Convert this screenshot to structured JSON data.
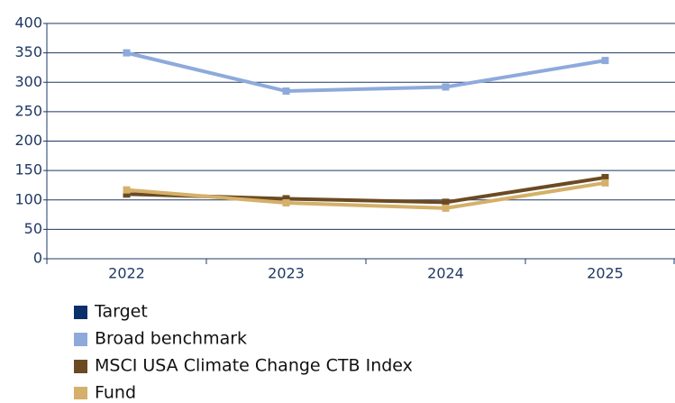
{
  "chart_data": {
    "type": "line",
    "categories": [
      "2022",
      "2023",
      "2024",
      "2025"
    ],
    "series": [
      {
        "name": "Target",
        "color": "#0b2f6b",
        "values": [
          null,
          null,
          null,
          null
        ]
      },
      {
        "name": "Broad benchmark",
        "color": "#8eaadb",
        "values": [
          350,
          285,
          292,
          337
        ]
      },
      {
        "name": "MSCI USA Climate Change CTB Index",
        "color": "#6b4a23",
        "values": [
          110,
          102,
          96,
          138
        ]
      },
      {
        "name": "Fund",
        "color": "#d4b06a",
        "values": [
          117,
          95,
          86,
          129
        ]
      }
    ],
    "ylim": [
      0,
      400
    ],
    "yticks": [
      0,
      50,
      100,
      150,
      200,
      250,
      300,
      350,
      400
    ],
    "grid": true
  }
}
